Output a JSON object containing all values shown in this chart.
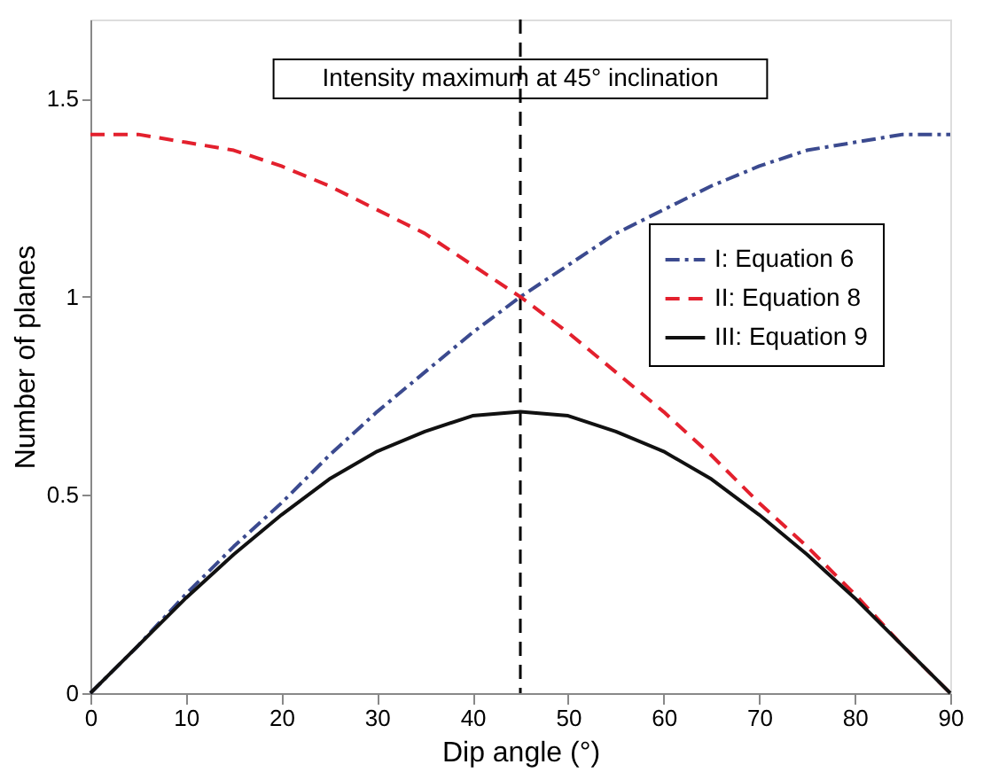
{
  "chart_data": {
    "type": "line",
    "xlabel": "Dip angle (°)",
    "ylabel": "Number of planes",
    "x": [
      0,
      5,
      10,
      15,
      20,
      25,
      30,
      35,
      40,
      45,
      50,
      55,
      60,
      65,
      70,
      75,
      80,
      85,
      90
    ],
    "series": [
      {
        "name": "I: Equation 6",
        "color": "#3b4a8f",
        "line_style": "dashdot",
        "values": [
          0,
          0.12,
          0.25,
          0.37,
          0.48,
          0.6,
          0.71,
          0.81,
          0.91,
          1.0,
          1.08,
          1.16,
          1.22,
          1.28,
          1.33,
          1.37,
          1.39,
          1.41,
          1.41
        ]
      },
      {
        "name": "II: Equation 8",
        "color": "#e3202d",
        "line_style": "dashed",
        "values": [
          1.41,
          1.41,
          1.39,
          1.37,
          1.33,
          1.28,
          1.22,
          1.16,
          1.08,
          1.0,
          0.91,
          0.81,
          0.71,
          0.6,
          0.48,
          0.37,
          0.25,
          0.12,
          0
        ]
      },
      {
        "name": "III: Equation 9",
        "color": "#111111",
        "line_style": "solid",
        "values": [
          0,
          0.12,
          0.24,
          0.35,
          0.45,
          0.54,
          0.61,
          0.66,
          0.7,
          0.71,
          0.7,
          0.66,
          0.61,
          0.54,
          0.45,
          0.35,
          0.24,
          0.12,
          0
        ]
      }
    ],
    "xlim": [
      0,
      90
    ],
    "xticks": [
      0,
      10,
      20,
      30,
      40,
      50,
      60,
      70,
      80,
      90
    ],
    "ylim": [
      0,
      1.7
    ],
    "yticks": [
      0,
      0.5,
      1,
      1.5
    ],
    "ref_lines": [
      {
        "axis": "x",
        "value": 45,
        "color": "#000000",
        "line_style": "dashed"
      }
    ],
    "annotations": [
      {
        "text": "Intensity maximum at 45° inclination",
        "x": 45,
        "y": 1.55
      }
    ],
    "legend": "right",
    "grid": false
  }
}
